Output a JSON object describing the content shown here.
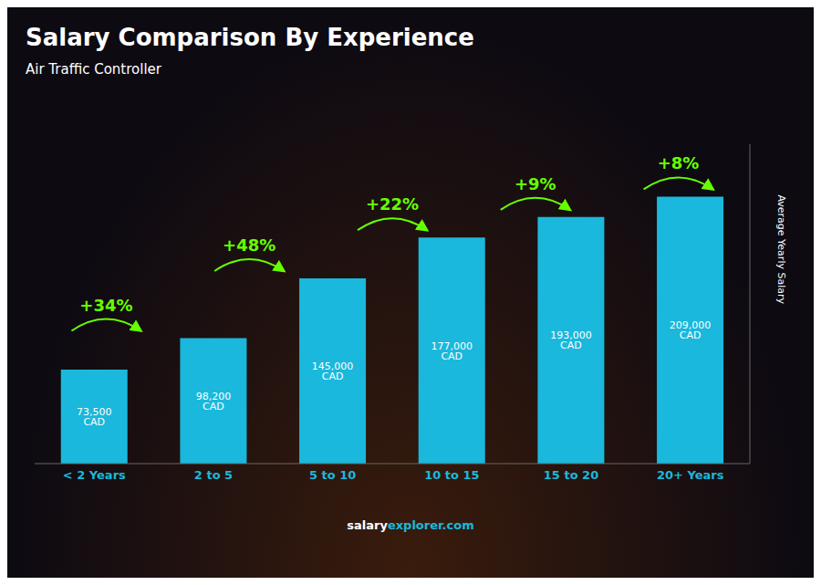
{
  "chart_data": {
    "type": "bar",
    "title": "Salary Comparison By Experience",
    "subtitle": "Air Traffic Controller",
    "ylabel": "Average Yearly Salary",
    "categories": [
      "< 2 Years",
      "2 to 5",
      "5 to 10",
      "10 to 15",
      "15 to 20",
      "20+ Years"
    ],
    "values": [
      73500,
      98200,
      145000,
      177000,
      193000,
      209000
    ],
    "value_labels": [
      "73,500 CAD",
      "98,200 CAD",
      "145,000 CAD",
      "177,000 CAD",
      "193,000 CAD",
      "209,000 CAD"
    ],
    "data_labels": true,
    "color": "#1ab8dc",
    "ylim": [
      0,
      250000
    ],
    "tick_labels": "x",
    "grid": false,
    "annotations": [
      {
        "text": "+34%",
        "from": "< 2 Years",
        "to": "2 to 5",
        "color": "#66ff00"
      },
      {
        "text": "+48%",
        "from": "2 to 5",
        "to": "5 to 10",
        "color": "#66ff00"
      },
      {
        "text": "+22%",
        "from": "5 to 10",
        "to": "10 to 15",
        "color": "#66ff00"
      },
      {
        "text": "+9%",
        "from": "10 to 15",
        "to": "15 to 20",
        "color": "#66ff00"
      },
      {
        "text": "+8%",
        "from": "15 to 20",
        "to": "20+ Years",
        "color": "#66ff00"
      },
      {
        "text": "salary",
        "color": "#ffffff"
      },
      {
        "text": "explorer",
        "color": "#1ab8dc"
      },
      {
        "text": ".com",
        "color": "#1ab8dc"
      }
    ]
  }
}
